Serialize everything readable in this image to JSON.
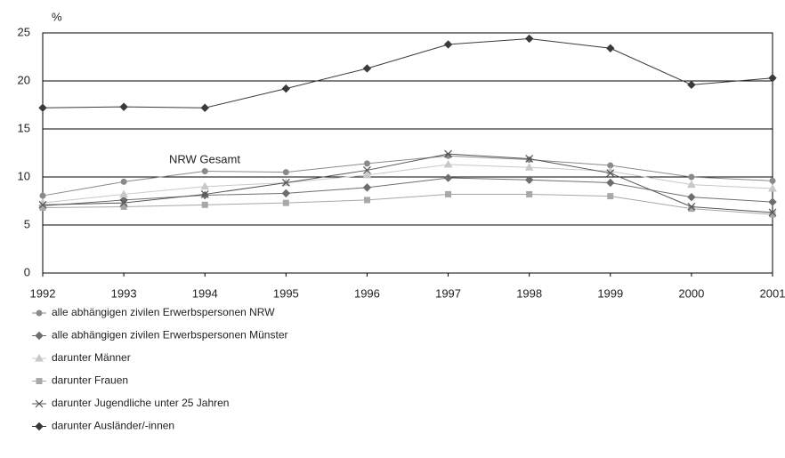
{
  "chart_data": {
    "type": "line",
    "y_label": "%",
    "annotation": "NRW Gesamt",
    "x": [
      1992,
      1993,
      1994,
      1995,
      1996,
      1997,
      1998,
      1999,
      2000,
      2001
    ],
    "xlim": [
      1992,
      2001
    ],
    "xticks": [
      1992,
      1993,
      1994,
      1995,
      1996,
      1997,
      1998,
      1999,
      2000,
      2001
    ],
    "ylim": [
      0,
      25
    ],
    "yticks": [
      0,
      5,
      10,
      15,
      20,
      25
    ],
    "grid": true,
    "series": [
      {
        "name": "alle abhängigen zivilen Erwerbspersonen NRW",
        "color": "#8a8a8a",
        "marker": "circle",
        "values": [
          8.05,
          9.5,
          10.6,
          10.5,
          11.4,
          12.2,
          11.8,
          11.2,
          10.0,
          9.6
        ]
      },
      {
        "name": "alle abhängigen zivilen Erwerbspersonen Münster",
        "color": "#6e6e6e",
        "marker": "diamond",
        "values": [
          7.0,
          7.6,
          8.1,
          8.3,
          8.9,
          9.9,
          9.7,
          9.4,
          7.9,
          7.4
        ]
      },
      {
        "name": "darunter Männer",
        "color": "#c8c8c8",
        "marker": "triangle",
        "values": [
          7.3,
          8.2,
          9.0,
          9.4,
          10.2,
          11.3,
          11.0,
          10.6,
          9.2,
          8.8
        ]
      },
      {
        "name": "darunter Frauen",
        "color": "#a8a8a8",
        "marker": "square",
        "values": [
          6.8,
          6.9,
          7.1,
          7.3,
          7.6,
          8.2,
          8.2,
          8.0,
          6.7,
          6.1
        ]
      },
      {
        "name": "darunter Jugendliche unter 25 Jahren",
        "color": "#555555",
        "marker": "cross",
        "values": [
          7.1,
          7.3,
          8.2,
          9.4,
          10.7,
          12.4,
          11.9,
          10.4,
          6.9,
          6.3
        ]
      },
      {
        "name": "darunter Ausländer/-innen",
        "color": "#3a3a3a",
        "marker": "diamond",
        "values": [
          17.2,
          17.3,
          17.2,
          19.2,
          21.3,
          23.8,
          24.4,
          23.4,
          19.6,
          20.3
        ]
      }
    ]
  }
}
